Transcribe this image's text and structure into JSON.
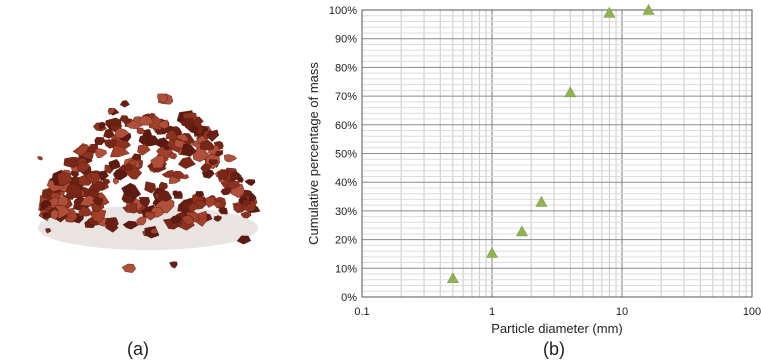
{
  "panels": {
    "a_label": "(a)",
    "b_label": "(b)"
  },
  "photo": {
    "subject": "pile of red-brown rock fragments",
    "rock_colors": [
      "#7a2617",
      "#8e3220",
      "#a2402a",
      "#6a1f13",
      "#b0503a",
      "#5c1a10"
    ]
  },
  "chart_data": {
    "type": "scatter",
    "xscale": "log",
    "xlim": [
      0.1,
      100
    ],
    "ylim": [
      0,
      100
    ],
    "xlabel": "Particle diameter (mm)",
    "ylabel": "Cumulative percentage of mass",
    "xticks": [
      "0.1",
      "1",
      "10",
      "100"
    ],
    "yticks": [
      "0%",
      "10%",
      "20%",
      "30%",
      "40%",
      "50%",
      "60%",
      "70%",
      "80%",
      "90%",
      "100%"
    ],
    "grid": true,
    "marker": "triangle",
    "marker_color": "#8fb352",
    "series": [
      {
        "x": [
          0.5,
          1.0,
          1.7,
          2.4,
          4.0,
          8.0,
          16.0
        ],
        "y": [
          6.5,
          15.3,
          22.8,
          33.1,
          71.3,
          99.0,
          100.0
        ]
      }
    ]
  }
}
